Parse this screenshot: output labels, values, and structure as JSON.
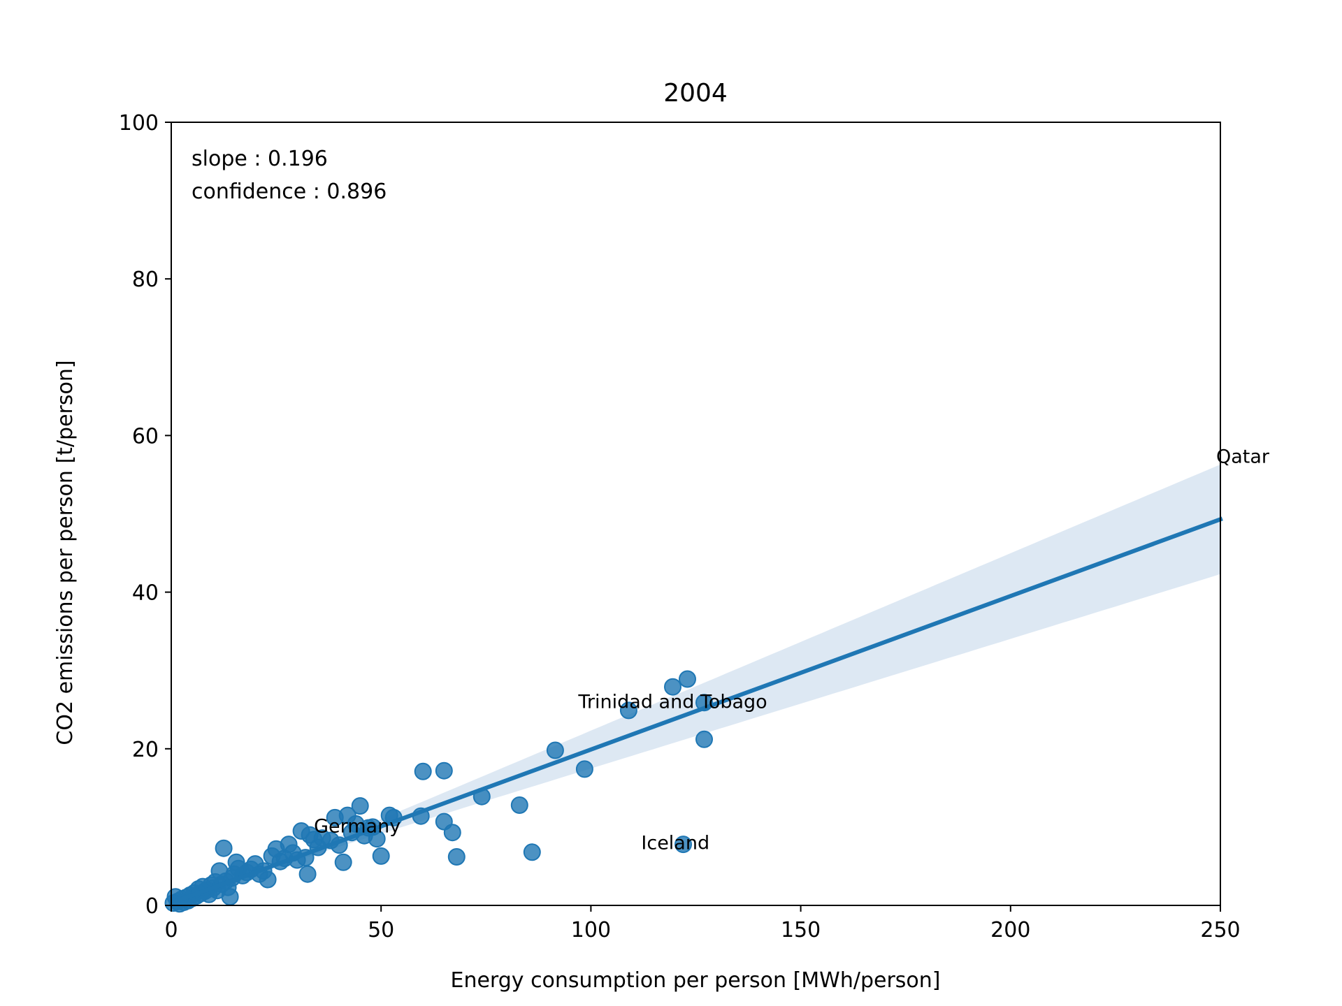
{
  "chart_data": {
    "type": "scatter",
    "title": "2004",
    "xlabel": "Energy consumption per person [MWh/person]",
    "ylabel": "CO2 emissions per person [t/person]",
    "xlim": [
      0,
      250
    ],
    "ylim": [
      0,
      100
    ],
    "xticks": [
      0,
      50,
      100,
      150,
      200,
      250
    ],
    "yticks": [
      0,
      20,
      40,
      60,
      80,
      100
    ],
    "grid": false,
    "colors": {
      "points": "#1f77b4",
      "line": "#1f77b4",
      "band": "#dde8f3"
    },
    "annotations": [
      "slope : 0.196",
      "confidence : 0.896"
    ],
    "regression": {
      "x": [
        0,
        250
      ],
      "y": [
        0.3,
        49.3
      ],
      "ci_upper_at_max": 53.8,
      "ci_lower_at_max": 39.8
    },
    "labels": [
      {
        "text": "Qatar",
        "x": 249,
        "y": 56.5
      },
      {
        "text": "Trinidad and Tobago",
        "x": 97,
        "y": 25.2
      },
      {
        "text": "Germany",
        "x": 34,
        "y": 9.3
      },
      {
        "text": "Iceland",
        "x": 112,
        "y": 7.2
      }
    ],
    "points": [
      [
        0.5,
        0.3
      ],
      [
        1,
        1.1
      ],
      [
        1.5,
        0.5
      ],
      [
        2,
        0.2
      ],
      [
        2.5,
        0.8
      ],
      [
        3,
        0.4
      ],
      [
        3.5,
        1.0
      ],
      [
        4,
        0.6
      ],
      [
        4.5,
        1.3
      ],
      [
        5,
        0.9
      ],
      [
        5.5,
        1.6
      ],
      [
        6,
        1.2
      ],
      [
        6.5,
        2.1
      ],
      [
        7,
        1.5
      ],
      [
        7.5,
        2.4
      ],
      [
        8,
        1.8
      ],
      [
        8.5,
        2.0
      ],
      [
        9,
        1.4
      ],
      [
        9.5,
        2.6
      ],
      [
        10,
        2.2
      ],
      [
        10.5,
        3.0
      ],
      [
        11,
        1.9
      ],
      [
        11.5,
        4.4
      ],
      [
        12,
        2.7
      ],
      [
        12.5,
        7.3
      ],
      [
        13,
        3.1
      ],
      [
        13.5,
        2.3
      ],
      [
        14,
        1.1
      ],
      [
        14.5,
        3.5
      ],
      [
        15,
        4.0
      ],
      [
        15.5,
        5.5
      ],
      [
        16,
        4.7
      ],
      [
        17,
        3.8
      ],
      [
        18,
        4.2
      ],
      [
        19,
        4.6
      ],
      [
        20,
        5.3
      ],
      [
        21,
        4.0
      ],
      [
        22,
        4.4
      ],
      [
        23,
        3.3
      ],
      [
        24,
        6.3
      ],
      [
        25,
        7.2
      ],
      [
        26,
        5.6
      ],
      [
        27,
        6.0
      ],
      [
        28,
        7.8
      ],
      [
        29,
        6.7
      ],
      [
        30,
        5.8
      ],
      [
        31,
        9.5
      ],
      [
        32,
        6.1
      ],
      [
        32.5,
        4.0
      ],
      [
        33,
        9.0
      ],
      [
        34,
        8.4
      ],
      [
        35,
        7.4
      ],
      [
        36,
        8.6
      ],
      [
        38,
        8.3
      ],
      [
        39,
        11.2
      ],
      [
        40,
        7.7
      ],
      [
        41,
        5.5
      ],
      [
        42,
        11.5
      ],
      [
        43,
        9.3
      ],
      [
        44,
        10.4
      ],
      [
        45,
        12.7
      ],
      [
        46,
        8.9
      ],
      [
        47,
        9.9
      ],
      [
        48,
        10.0
      ],
      [
        49,
        8.5
      ],
      [
        50,
        6.3
      ],
      [
        52,
        11.5
      ],
      [
        53,
        11.2
      ],
      [
        59.5,
        11.4
      ],
      [
        60,
        17.1
      ],
      [
        65,
        17.2
      ],
      [
        65,
        10.7
      ],
      [
        67,
        9.3
      ],
      [
        68,
        6.2
      ],
      [
        74,
        13.9
      ],
      [
        83,
        12.8
      ],
      [
        86,
        6.8
      ],
      [
        91.5,
        19.8
      ],
      [
        98.5,
        17.4
      ],
      [
        109,
        24.9
      ],
      [
        119.5,
        27.9
      ],
      [
        122,
        7.8
      ],
      [
        123,
        28.9
      ],
      [
        127,
        21.2
      ],
      [
        127,
        25.9
      ]
    ]
  }
}
